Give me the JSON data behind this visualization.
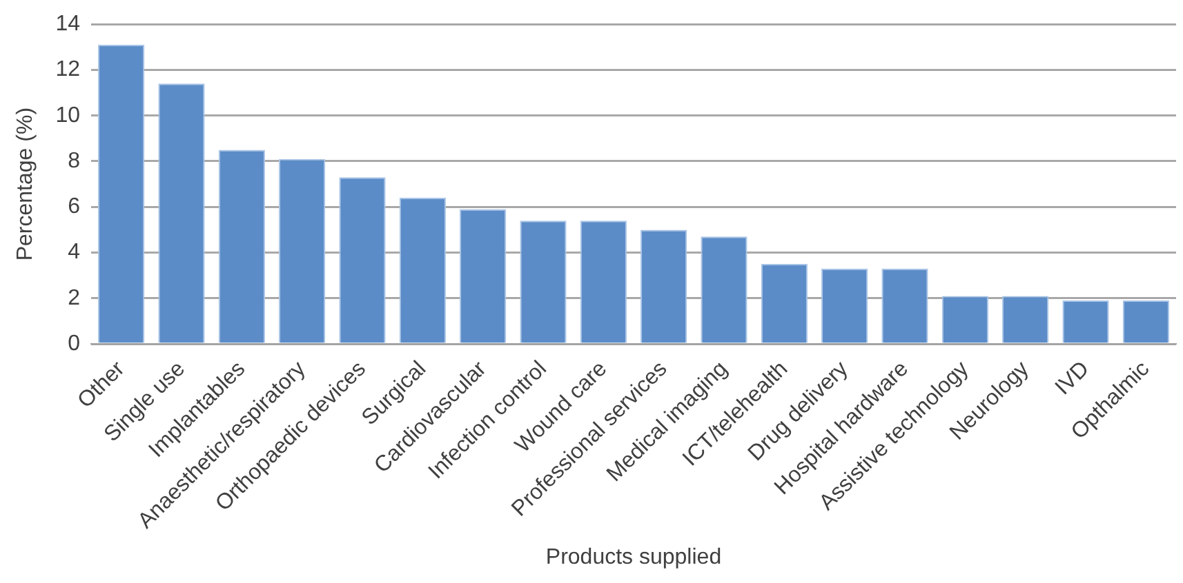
{
  "chart_data": {
    "type": "bar",
    "xlabel": "Products supplied",
    "ylabel": "Percentage (%)",
    "categories": [
      "Other",
      "Single use",
      "Implantables",
      "Anaesthetic/respiratory",
      "Orthopaedic devices",
      "Surgical",
      "Cardiovascular",
      "Infection control",
      "Wound care",
      "Professional services",
      "Medical imaging",
      "ICT/telehealth",
      "Drug delivery",
      "Hospital hardware",
      "Assistive technology",
      "Neurology",
      "IVD",
      "Opthalmic"
    ],
    "values": [
      13.1,
      11.4,
      8.5,
      8.1,
      7.3,
      6.4,
      5.9,
      5.4,
      5.4,
      5.0,
      4.7,
      3.5,
      3.3,
      3.3,
      2.1,
      2.1,
      1.9,
      1.9
    ],
    "color": "#5b8cc8",
    "ylim": [
      0,
      14
    ],
    "yticks": [
      0,
      2,
      4,
      6,
      8,
      10,
      12,
      14
    ],
    "grid": "y",
    "legend": false
  }
}
